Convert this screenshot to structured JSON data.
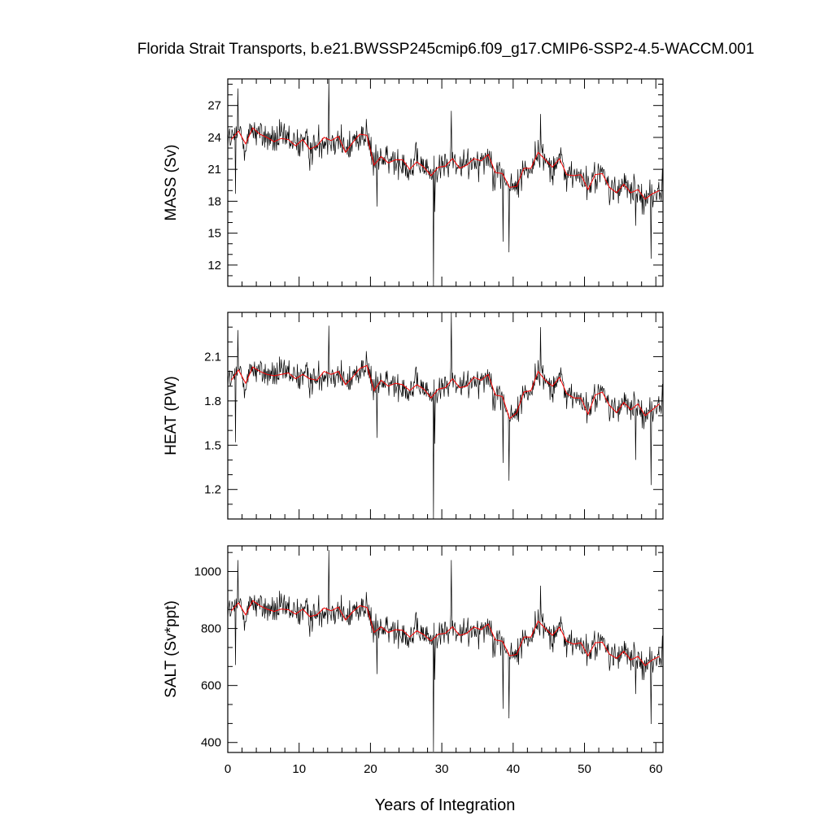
{
  "chart_data": {
    "type": "line",
    "title": "Florida Strait Transports, b.e21.BWSSP245cmip6.f09_g17.CMIP6-SSP2-4.5-WACCM.001",
    "xlabel": "Years of Integration",
    "xlim": [
      0,
      61
    ],
    "x_ticks": [
      0,
      10,
      20,
      30,
      40,
      50,
      60
    ],
    "monthly_resolution": "12 per year",
    "colors": {
      "monthly": "#000000",
      "annual": "#ff0000"
    },
    "grid": false,
    "panels": [
      {
        "ylabel": "MASS (Sv)",
        "ylim": [
          10.0,
          29.5
        ],
        "y_ticks": [
          12,
          15,
          18,
          21,
          24,
          27
        ],
        "annual_years": [
          0.5,
          1.5,
          2.5,
          3.5,
          4.5,
          5.5,
          6.5,
          7.5,
          8.5,
          9.5,
          10.5,
          11.5,
          12.5,
          13.5,
          14.5,
          15.5,
          16.5,
          17.5,
          18.5,
          19.5,
          20.5,
          21.5,
          22.5,
          23.5,
          24.5,
          25.5,
          26.5,
          27.5,
          28.5,
          29.5,
          30.5,
          31.5,
          32.5,
          33.5,
          34.5,
          35.5,
          36.5,
          37.5,
          38.5,
          39.5,
          40.5,
          41.5,
          42.5,
          43.5,
          44.5,
          45.5,
          46.5,
          47.5,
          48.5,
          49.5,
          50.5,
          51.5,
          52.5,
          53.5,
          54.5,
          55.5,
          56.5,
          57.5,
          58.5,
          59.5,
          60.5
        ],
        "annual_means": [
          23.8,
          24.6,
          23.4,
          24.9,
          24.3,
          24.0,
          23.6,
          23.9,
          23.8,
          23.2,
          23.8,
          22.9,
          23.2,
          24.0,
          23.7,
          24.1,
          22.6,
          23.5,
          24.3,
          24.2,
          21.4,
          22.2,
          21.6,
          21.9,
          21.9,
          21.0,
          21.7,
          21.2,
          20.4,
          21.2,
          21.3,
          22.0,
          21.1,
          21.4,
          22.0,
          21.8,
          22.4,
          20.7,
          20.6,
          19.3,
          19.4,
          21.1,
          21.1,
          22.6,
          21.9,
          21.2,
          22.0,
          20.5,
          20.4,
          20.5,
          19.1,
          20.5,
          20.6,
          19.3,
          18.8,
          19.6,
          18.8,
          19.1,
          18.2,
          18.7,
          19.0
        ],
        "monthly_sd": 2.0,
        "monthly_extremes": [
          {
            "year": 1.4,
            "value": 28.6
          },
          {
            "year": 1.1,
            "value": 18.7
          },
          {
            "year": 14.2,
            "value": 29.5
          },
          {
            "year": 20.9,
            "value": 17.5
          },
          {
            "year": 28.8,
            "value": 10.0
          },
          {
            "year": 29.0,
            "value": 17.0
          },
          {
            "year": 31.3,
            "value": 26.5
          },
          {
            "year": 38.6,
            "value": 14.2
          },
          {
            "year": 39.4,
            "value": 13.2
          },
          {
            "year": 43.8,
            "value": 26.2
          },
          {
            "year": 57.2,
            "value": 15.7
          },
          {
            "year": 59.3,
            "value": 12.6
          }
        ]
      },
      {
        "ylabel": "HEAT (PW)",
        "ylim": [
          1.0,
          2.4
        ],
        "y_ticks": [
          1.2,
          1.5,
          1.8,
          2.1
        ],
        "annual_years": [
          0.5,
          1.5,
          2.5,
          3.5,
          4.5,
          5.5,
          6.5,
          7.5,
          8.5,
          9.5,
          10.5,
          11.5,
          12.5,
          13.5,
          14.5,
          15.5,
          16.5,
          17.5,
          18.5,
          19.5,
          20.5,
          21.5,
          22.5,
          23.5,
          24.5,
          25.5,
          26.5,
          27.5,
          28.5,
          29.5,
          30.5,
          31.5,
          32.5,
          33.5,
          34.5,
          35.5,
          36.5,
          37.5,
          38.5,
          39.5,
          40.5,
          41.5,
          42.5,
          43.5,
          44.5,
          45.5,
          46.5,
          47.5,
          48.5,
          49.5,
          50.5,
          51.5,
          52.5,
          53.5,
          54.5,
          55.5,
          56.5,
          57.5,
          58.5,
          59.5,
          60.5
        ],
        "annual_means": [
          1.94,
          2.01,
          1.92,
          2.03,
          2.0,
          1.98,
          1.97,
          1.98,
          1.99,
          1.95,
          1.98,
          1.95,
          1.94,
          2.0,
          1.98,
          2.0,
          1.91,
          1.96,
          2.02,
          2.04,
          1.87,
          1.94,
          1.9,
          1.92,
          1.91,
          1.87,
          1.91,
          1.88,
          1.82,
          1.88,
          1.89,
          1.95,
          1.89,
          1.9,
          1.96,
          1.94,
          1.98,
          1.84,
          1.83,
          1.68,
          1.72,
          1.86,
          1.87,
          2.0,
          1.94,
          1.9,
          1.96,
          1.85,
          1.82,
          1.82,
          1.71,
          1.84,
          1.86,
          1.77,
          1.72,
          1.79,
          1.74,
          1.78,
          1.7,
          1.74,
          1.78
        ],
        "monthly_sd": 0.13,
        "monthly_extremes": [
          {
            "year": 1.4,
            "value": 2.28
          },
          {
            "year": 1.1,
            "value": 1.52
          },
          {
            "year": 14.2,
            "value": 2.31
          },
          {
            "year": 20.9,
            "value": 1.55
          },
          {
            "year": 28.8,
            "value": 0.99
          },
          {
            "year": 29.0,
            "value": 1.51
          },
          {
            "year": 31.3,
            "value": 2.41
          },
          {
            "year": 38.6,
            "value": 1.38
          },
          {
            "year": 39.4,
            "value": 1.26
          },
          {
            "year": 43.8,
            "value": 2.3
          },
          {
            "year": 57.2,
            "value": 1.4
          },
          {
            "year": 59.3,
            "value": 1.23
          }
        ]
      },
      {
        "ylabel": "SALT (Sv*ppt)",
        "ylim": [
          365,
          1090
        ],
        "y_ticks": [
          400,
          600,
          800,
          1000
        ],
        "annual_years": [
          0.5,
          1.5,
          2.5,
          3.5,
          4.5,
          5.5,
          6.5,
          7.5,
          8.5,
          9.5,
          10.5,
          11.5,
          12.5,
          13.5,
          14.5,
          15.5,
          16.5,
          17.5,
          18.5,
          19.5,
          20.5,
          21.5,
          22.5,
          23.5,
          24.5,
          25.5,
          26.5,
          27.5,
          28.5,
          29.5,
          30.5,
          31.5,
          32.5,
          33.5,
          34.5,
          35.5,
          36.5,
          37.5,
          38.5,
          39.5,
          40.5,
          41.5,
          42.5,
          43.5,
          44.5,
          45.5,
          46.5,
          47.5,
          48.5,
          49.5,
          50.5,
          51.5,
          52.5,
          53.5,
          54.5,
          55.5,
          56.5,
          57.5,
          58.5,
          59.5,
          60.5
        ],
        "annual_means": [
          862,
          890,
          848,
          898,
          880,
          868,
          860,
          868,
          866,
          850,
          868,
          842,
          848,
          872,
          862,
          875,
          830,
          858,
          880,
          874,
          786,
          806,
          786,
          796,
          794,
          770,
          792,
          778,
          756,
          780,
          783,
          806,
          776,
          783,
          805,
          796,
          816,
          760,
          755,
          704,
          709,
          770,
          770,
          826,
          800,
          776,
          805,
          755,
          745,
          750,
          704,
          750,
          752,
          710,
          695,
          720,
          690,
          702,
          670,
          690,
          702
        ],
        "monthly_sd": 70,
        "monthly_extremes": [
          {
            "year": 1.4,
            "value": 1040
          },
          {
            "year": 1.1,
            "value": 672
          },
          {
            "year": 14.2,
            "value": 1075
          },
          {
            "year": 20.9,
            "value": 640
          },
          {
            "year": 28.8,
            "value": 368
          },
          {
            "year": 29.0,
            "value": 620
          },
          {
            "year": 31.3,
            "value": 1040
          },
          {
            "year": 38.6,
            "value": 518
          },
          {
            "year": 39.4,
            "value": 485
          },
          {
            "year": 43.8,
            "value": 950
          },
          {
            "year": 57.2,
            "value": 570
          },
          {
            "year": 59.3,
            "value": 465
          }
        ]
      }
    ]
  }
}
